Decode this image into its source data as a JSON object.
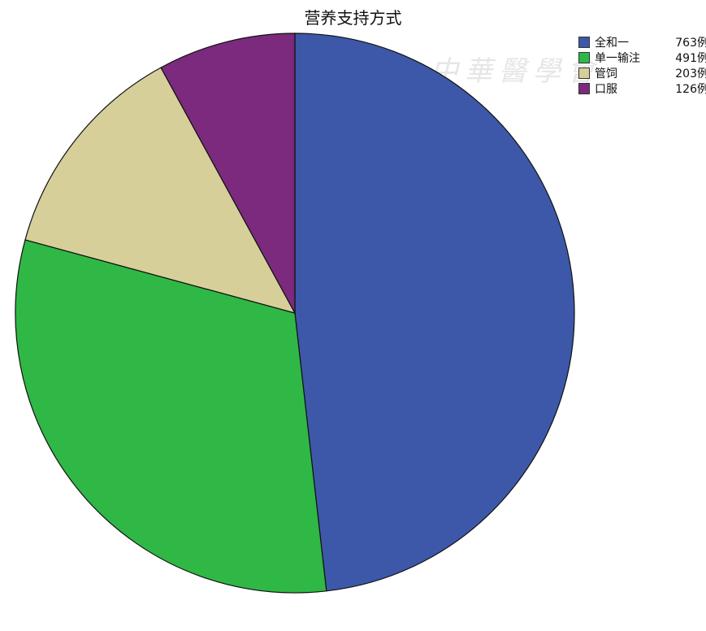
{
  "chart_data": {
    "type": "pie",
    "title": "营养支持方式",
    "categories": [
      "全和一",
      "单一输注",
      "管饲",
      "口服"
    ],
    "values": [
      763,
      491,
      203,
      126
    ],
    "value_suffix": "例",
    "colors": [
      "#3d58a8",
      "#2fb845",
      "#d6cf9a",
      "#7b2a7e"
    ],
    "start": "12 o'clock",
    "direction": "clockwise",
    "legend_position": "top-right"
  },
  "watermark": "中華醫學會"
}
